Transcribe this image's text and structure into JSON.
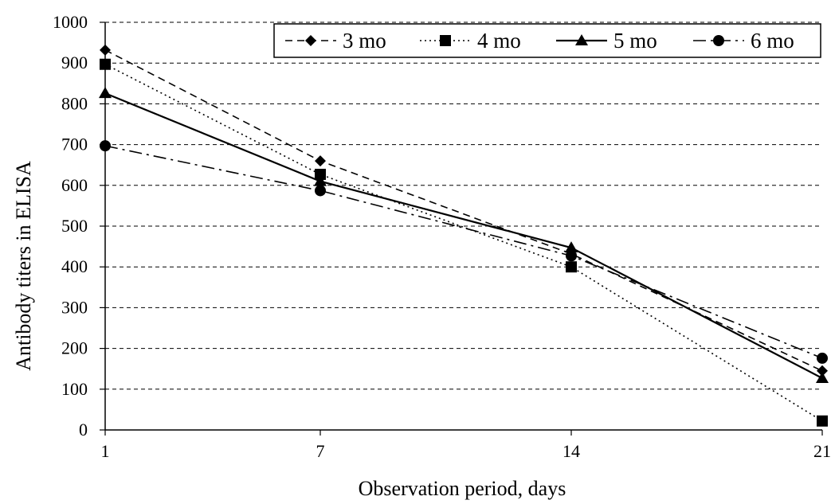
{
  "chart_data": {
    "type": "line",
    "x": [
      1,
      7,
      14,
      21
    ],
    "x_tick_labels": [
      "1",
      "7",
      "14",
      "21"
    ],
    "y_tick_labels": [
      "0",
      "100",
      "200",
      "300",
      "400",
      "500",
      "600",
      "700",
      "800",
      "900",
      "1000"
    ],
    "ylim": [
      0,
      1000
    ],
    "xlabel": "Observation period, days",
    "ylabel": "Antibody titers in ELISA",
    "grid": "horizontal dashed",
    "legend_position": "top-right",
    "series": [
      {
        "name": "3 mo",
        "values": [
          932,
          660,
          432,
          145
        ],
        "marker": "diamond",
        "dash": "dashed"
      },
      {
        "name": "4 mo",
        "values": [
          897,
          627,
          400,
          22
        ],
        "marker": "square",
        "dash": "dotted"
      },
      {
        "name": "5 mo",
        "values": [
          826,
          610,
          447,
          127
        ],
        "marker": "triangle",
        "dash": "solid"
      },
      {
        "name": "6 mo",
        "values": [
          697,
          587,
          427,
          176
        ],
        "marker": "circle",
        "dash": "dash-dot"
      }
    ],
    "line_color": "#000000",
    "grid_color": "#000000"
  }
}
